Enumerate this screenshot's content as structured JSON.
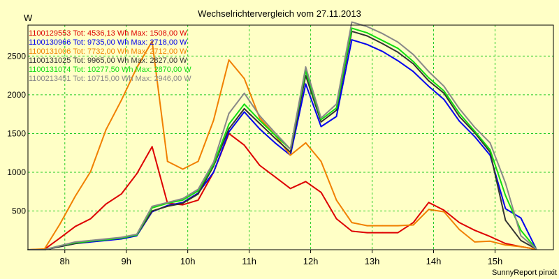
{
  "chart_data": {
    "type": "line",
    "title": "Wechselrichtervergleich vom 27.11.2013",
    "ylabel": "W",
    "xlabel": "",
    "footer": "SunnyReport pinxit",
    "ylim": [
      0,
      2900
    ],
    "xlim": [
      7.4,
      15.95
    ],
    "yticks": [
      500,
      1000,
      1500,
      2000,
      2500
    ],
    "xticks": [
      {
        "value": 8,
        "label": "8h"
      },
      {
        "value": 9,
        "label": "9h"
      },
      {
        "value": 10,
        "label": "10h"
      },
      {
        "value": 11,
        "label": "11h"
      },
      {
        "value": 12,
        "label": "12h"
      },
      {
        "value": 13,
        "label": "13h"
      },
      {
        "value": 14,
        "label": "14h"
      },
      {
        "value": 15,
        "label": "15h"
      }
    ],
    "grid": true,
    "legend_position": "top-left",
    "x": [
      7.4,
      7.67,
      7.92,
      8.17,
      8.42,
      8.67,
      8.92,
      9.17,
      9.42,
      9.67,
      9.92,
      10.17,
      10.42,
      10.67,
      10.92,
      11.17,
      11.42,
      11.67,
      11.92,
      12.17,
      12.42,
      12.67,
      12.92,
      13.17,
      13.42,
      13.67,
      13.92,
      14.17,
      14.42,
      14.67,
      14.92,
      15.17,
      15.42,
      15.67
    ],
    "series": [
      {
        "name": "1100129553",
        "total": "4536,13",
        "max": "1508,00",
        "color": "#DD0000",
        "values": [
          0,
          5,
          150,
          300,
          400,
          590,
          720,
          980,
          1330,
          600,
          580,
          640,
          1000,
          1500,
          1350,
          1090,
          940,
          790,
          880,
          740,
          400,
          240,
          220,
          220,
          220,
          350,
          610,
          510,
          350,
          250,
          170,
          80,
          40,
          5
        ]
      },
      {
        "name": "1100130966",
        "total": "9735,00",
        "max": "2718,00",
        "color": "#0000EE",
        "values": [
          0,
          0,
          40,
          80,
          100,
          120,
          140,
          180,
          490,
          570,
          610,
          730,
          1000,
          1520,
          1780,
          1560,
          1380,
          1220,
          2140,
          1590,
          1720,
          2710,
          2650,
          2560,
          2440,
          2300,
          2110,
          1940,
          1660,
          1460,
          1220,
          530,
          410,
          10
        ]
      },
      {
        "name": "1100131006",
        "total": "7732,00",
        "max": "2712,00",
        "color": "#F08000",
        "values": [
          0,
          10,
          330,
          690,
          1010,
          1550,
          1930,
          2350,
          2690,
          1140,
          1040,
          1140,
          1670,
          2450,
          2210,
          1700,
          1480,
          1220,
          1380,
          1140,
          640,
          350,
          310,
          310,
          310,
          320,
          520,
          490,
          260,
          100,
          110,
          60,
          40,
          5
        ]
      },
      {
        "name": "1100131025",
        "total": "9965,00",
        "max": "2827,00",
        "color": "#333333",
        "values": [
          0,
          0,
          40,
          80,
          110,
          130,
          150,
          190,
          500,
          560,
          600,
          720,
          1080,
          1560,
          1820,
          1630,
          1440,
          1260,
          2250,
          1650,
          1800,
          2820,
          2760,
          2660,
          2550,
          2400,
          2180,
          2020,
          1720,
          1510,
          1260,
          380,
          120,
          10
        ]
      },
      {
        "name": "1100131074",
        "total": "10277,50",
        "max": "2870,00",
        "color": "#11DD11",
        "values": [
          0,
          0,
          50,
          90,
          110,
          130,
          150,
          190,
          540,
          600,
          640,
          760,
          1100,
          1620,
          1880,
          1670,
          1480,
          1300,
          2310,
          1680,
          1830,
          2860,
          2800,
          2700,
          2600,
          2430,
          2220,
          2050,
          1760,
          1530,
          1290,
          700,
          250,
          10
        ]
      },
      {
        "name": "1100213451",
        "total": "10715,00",
        "max": "2946,00",
        "color": "#888888",
        "values": [
          0,
          0,
          50,
          100,
          120,
          140,
          160,
          200,
          560,
          610,
          660,
          780,
          1130,
          1760,
          2020,
          1730,
          1510,
          1300,
          2360,
          1700,
          1880,
          2940,
          2880,
          2790,
          2680,
          2520,
          2300,
          2110,
          1820,
          1580,
          1380,
          860,
          180,
          10
        ]
      }
    ]
  }
}
